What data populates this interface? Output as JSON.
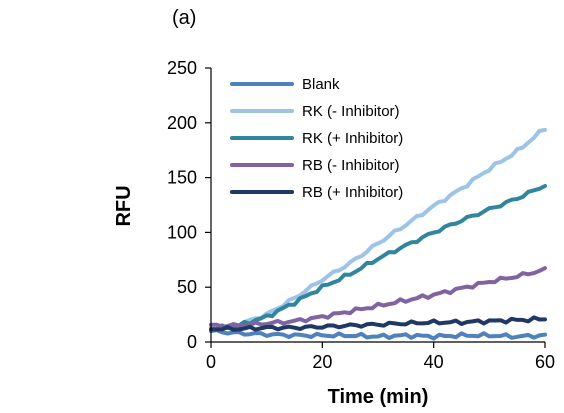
{
  "chart_data": {
    "type": "line",
    "panel_label": "(a)",
    "title": "",
    "xlabel": "Time (min)",
    "ylabel": "RFU",
    "xlim": [
      0,
      60
    ],
    "ylim": [
      0,
      250
    ],
    "xticks": [
      0,
      20,
      40,
      60
    ],
    "yticks": [
      0,
      50,
      100,
      150,
      200,
      250
    ],
    "grid": false,
    "legend": "top-left",
    "series": [
      {
        "name": "Blank",
        "color": "#4f81bd",
        "x": [
          0,
          5,
          10,
          15,
          20,
          25,
          30,
          35,
          40,
          45,
          50,
          55,
          60
        ],
        "y": [
          10,
          8,
          7,
          6,
          6,
          6,
          5,
          6,
          5,
          6,
          6,
          5,
          6
        ]
      },
      {
        "name": "RK (- Inhibitor)",
        "color": "#9dc3e6",
        "x": [
          0,
          5,
          10,
          15,
          20,
          25,
          30,
          35,
          40,
          45,
          50,
          55,
          60
        ],
        "y": [
          12,
          16,
          25,
          40,
          57,
          72,
          90,
          107,
          124,
          140,
          158,
          174,
          195
        ]
      },
      {
        "name": "RK (+ Inhibitor)",
        "color": "#31859c",
        "x": [
          0,
          5,
          10,
          15,
          20,
          25,
          30,
          35,
          40,
          45,
          50,
          55,
          60
        ],
        "y": [
          12,
          15,
          23,
          36,
          50,
          62,
          76,
          88,
          100,
          111,
          121,
          131,
          143
        ]
      },
      {
        "name": "RB (- Inhibitor)",
        "color": "#8064a2",
        "x": [
          0,
          5,
          10,
          15,
          20,
          25,
          30,
          35,
          40,
          45,
          50,
          55,
          60
        ],
        "y": [
          15,
          15,
          17,
          19,
          23,
          28,
          33,
          38,
          43,
          49,
          55,
          60,
          66
        ]
      },
      {
        "name": "RB (+ Inhibitor)",
        "color": "#1f3864",
        "x": [
          0,
          5,
          10,
          15,
          20,
          25,
          30,
          35,
          40,
          45,
          50,
          55,
          60
        ],
        "y": [
          12,
          12,
          13,
          13,
          14,
          15,
          16,
          17,
          18,
          18,
          19,
          20,
          21
        ]
      }
    ]
  }
}
